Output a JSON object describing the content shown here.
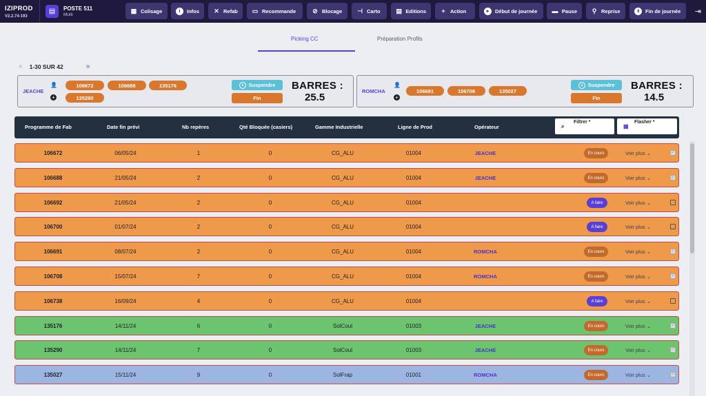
{
  "app": {
    "name": "IZIPROD",
    "version": "V2.2.74-193"
  },
  "poste": {
    "title": "POSTE 511",
    "subtitle": "Multi"
  },
  "toolbar": [
    {
      "label": "Colisage",
      "icon": "box-icon"
    },
    {
      "label": "Infos",
      "icon": "info-icon"
    },
    {
      "label": "Refab",
      "icon": "tools-icon"
    },
    {
      "label": "Recommande",
      "icon": "cart-icon"
    },
    {
      "label": "Blocage",
      "icon": "block-icon"
    },
    {
      "label": "Carto",
      "icon": "map-icon"
    },
    {
      "label": "Editions",
      "icon": "document-icon"
    },
    {
      "label": "Action",
      "icon": "plus-icon"
    },
    {
      "label": "Début de journée",
      "icon": "play-icon"
    },
    {
      "label": "Pause",
      "icon": "coffee-icon"
    },
    {
      "label": "Reprise",
      "icon": "run-icon"
    },
    {
      "label": "Fin de journée",
      "icon": "pause-circle-icon"
    }
  ],
  "tabs": [
    {
      "label": "Picking CC",
      "active": true
    },
    {
      "label": "Préparation Profils",
      "active": false
    }
  ],
  "pager": {
    "range": "1-30 SUR 42",
    "prev": "«",
    "next": "»"
  },
  "operators": [
    {
      "name": "JEACHE",
      "programs": [
        "106672",
        "106688",
        "135176",
        "135290"
      ],
      "suspend_label": "Suspendre",
      "fin_label": "Fin",
      "barres_label": "BARRES :",
      "barres_value": "25.5"
    },
    {
      "name": "ROMCHA",
      "programs": [
        "106691",
        "106708",
        "135027"
      ],
      "suspend_label": "Suspendre",
      "fin_label": "Fin",
      "barres_label": "BARRES :",
      "barres_value": "14.5"
    }
  ],
  "table": {
    "columns": [
      "Programme de Fab",
      "Date fin prévi",
      "Nb repères",
      "Qté Bloquée (casiers)",
      "Gamme Industrielle",
      "Ligne de Prod",
      "Opérateur"
    ],
    "filter_label": "Filtrer *",
    "flasher_label": "Flasher *",
    "voir_plus": "Voir plus",
    "rows": [
      {
        "prog": "106672",
        "date": "06/05/24",
        "nb": "1",
        "qte": "0",
        "gamme": "CG_ALU",
        "ligne": "01004",
        "oper": "JEACHE",
        "status": "En cours",
        "checked": true,
        "color": "orange"
      },
      {
        "prog": "106688",
        "date": "21/05/24",
        "nb": "2",
        "qte": "0",
        "gamme": "CG_ALU",
        "ligne": "01004",
        "oper": "JEACHE",
        "status": "En cours",
        "checked": true,
        "color": "orange"
      },
      {
        "prog": "106692",
        "date": "21/05/24",
        "nb": "2",
        "qte": "0",
        "gamme": "CG_ALU",
        "ligne": "01004",
        "oper": "",
        "status": "A faire",
        "checked": false,
        "color": "orange"
      },
      {
        "prog": "106700",
        "date": "01/07/24",
        "nb": "2",
        "qte": "0",
        "gamme": "CG_ALU",
        "ligne": "01004",
        "oper": "",
        "status": "A faire",
        "checked": false,
        "color": "orange"
      },
      {
        "prog": "106691",
        "date": "08/07/24",
        "nb": "2",
        "qte": "0",
        "gamme": "CG_ALU",
        "ligne": "01004",
        "oper": "ROMCHA",
        "status": "En cours",
        "checked": true,
        "color": "orange"
      },
      {
        "prog": "106708",
        "date": "15/07/24",
        "nb": "7",
        "qte": "0",
        "gamme": "CG_ALU",
        "ligne": "01004",
        "oper": "ROMCHA",
        "status": "En cours",
        "checked": true,
        "color": "orange"
      },
      {
        "prog": "106738",
        "date": "16/09/24",
        "nb": "4",
        "qte": "0",
        "gamme": "CG_ALU",
        "ligne": "01004",
        "oper": "",
        "status": "A faire",
        "checked": false,
        "color": "orange"
      },
      {
        "prog": "135176",
        "date": "14/11/24",
        "nb": "6",
        "qte": "0",
        "gamme": "SolCoul",
        "ligne": "01003",
        "oper": "JEACHE",
        "status": "En cours",
        "checked": true,
        "color": "green"
      },
      {
        "prog": "135290",
        "date": "14/11/24",
        "nb": "7",
        "qte": "0",
        "gamme": "SolCoul",
        "ligne": "01003",
        "oper": "JEACHE",
        "status": "En cours",
        "checked": true,
        "color": "green"
      },
      {
        "prog": "135027",
        "date": "15/11/24",
        "nb": "9",
        "qte": "0",
        "gamme": "SolFrap",
        "ligne": "01001",
        "oper": "ROMCHA",
        "status": "En cours",
        "checked": true,
        "color": "blue"
      }
    ]
  },
  "colors": {
    "topbar": "#1f1a3d",
    "accent": "#5a3fd6",
    "orange_row": "#ef9a4a",
    "green_row": "#6cc46e",
    "blue_row": "#9db6e1",
    "pill": "#d9772c"
  }
}
